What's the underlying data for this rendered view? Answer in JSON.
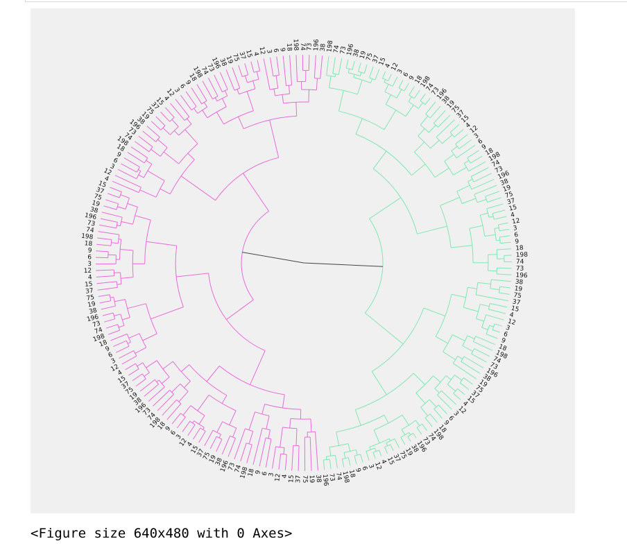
{
  "output": {
    "text": "<Figure size 640x480 with 0 Axes>"
  },
  "colors": {
    "background": "#f0f0f0",
    "cluster_top": "#7ee8b0",
    "cluster_bottom": "#e86ad8",
    "root_link": "#444444",
    "label": "#111111"
  },
  "chart_data": {
    "type": "dendrogram",
    "layout": "circular",
    "title": "",
    "xlabel": "",
    "ylabel": "",
    "grid": false,
    "legend": "none",
    "n_leaves": 200,
    "clusters": [
      {
        "color": "#7ee8b0",
        "leaf_count": 94
      },
      {
        "color": "#e86ad8",
        "leaf_count": 106
      }
    ],
    "visible_leaf_labels": [
      "198",
      "74",
      "73",
      "196",
      "38",
      "19",
      "75",
      "37",
      "15",
      "4",
      "12",
      "3",
      "6",
      "9",
      "18"
    ]
  }
}
